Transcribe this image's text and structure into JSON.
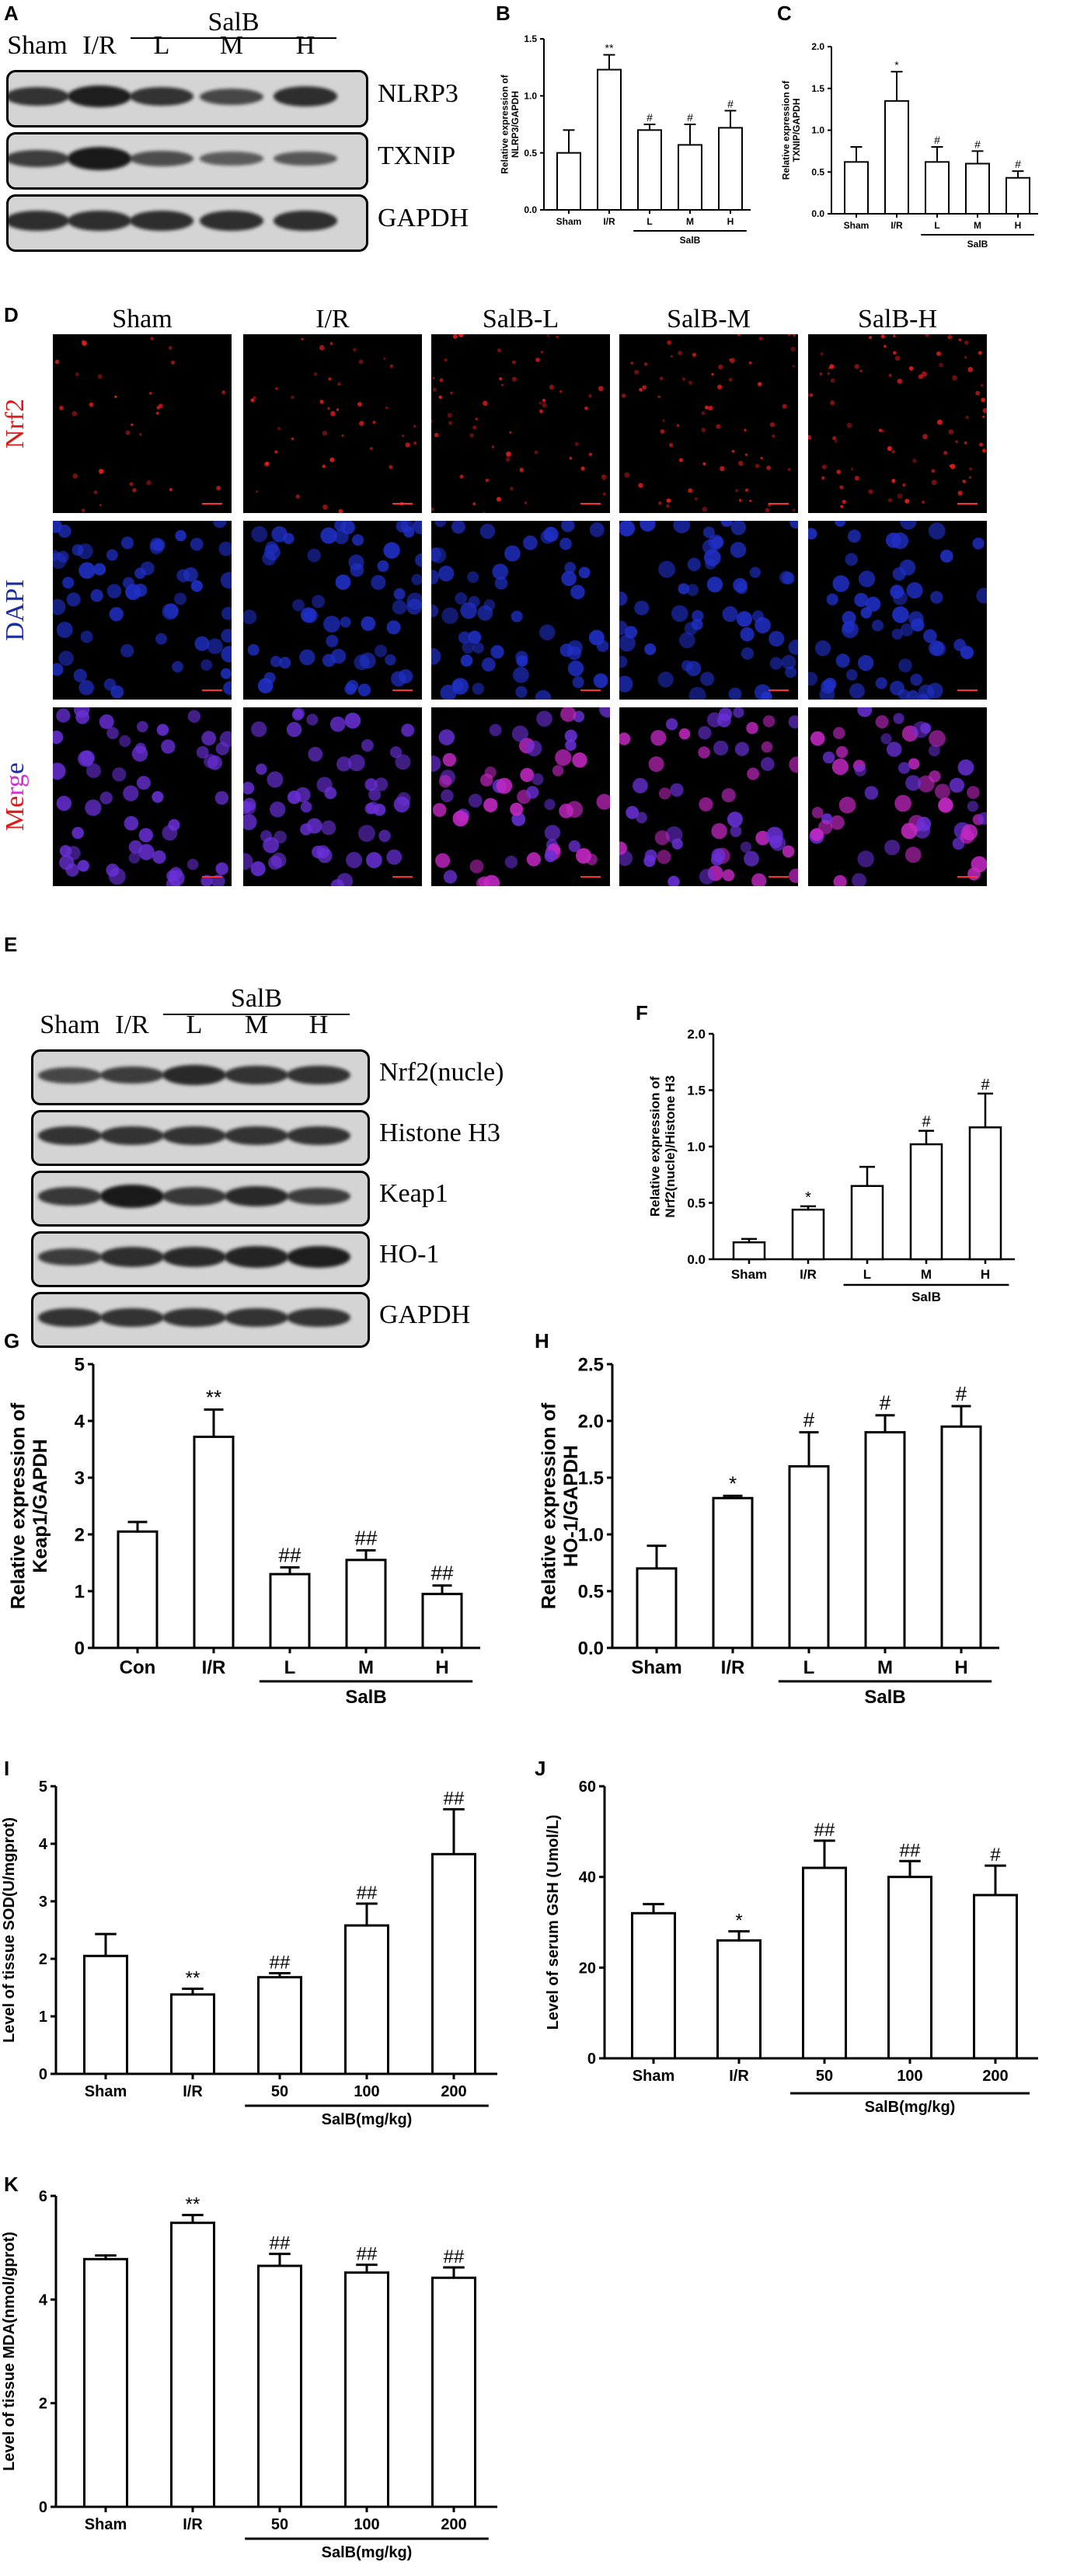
{
  "panel_labels": {
    "A": "A",
    "B": "B",
    "C": "C",
    "D": "D",
    "E": "E",
    "F": "F",
    "G": "G",
    "H": "H",
    "I": "I",
    "J": "J",
    "K": "K"
  },
  "blot_A": {
    "lanes": [
      "Sham",
      "I/R",
      "L",
      "M",
      "H"
    ],
    "group": "SalB",
    "rows": [
      "NLRP3",
      "TXNIP",
      "GAPDH"
    ],
    "intensity": [
      [
        0.7,
        0.9,
        0.7,
        0.5,
        0.75
      ],
      [
        0.6,
        0.95,
        0.45,
        0.3,
        0.35
      ],
      [
        0.75,
        0.75,
        0.75,
        0.75,
        0.75
      ]
    ]
  },
  "blot_E": {
    "lanes": [
      "Sham",
      "I/R",
      "L",
      "M",
      "H"
    ],
    "group": "SalB",
    "rows": [
      "Nrf2(nucle)",
      "Histone H3",
      "Keap1",
      "HO-1",
      "GAPDH"
    ],
    "intensity": [
      [
        0.5,
        0.6,
        0.8,
        0.7,
        0.7
      ],
      [
        0.7,
        0.7,
        0.7,
        0.7,
        0.7
      ],
      [
        0.65,
        0.95,
        0.65,
        0.8,
        0.6
      ],
      [
        0.6,
        0.75,
        0.8,
        0.85,
        0.9
      ],
      [
        0.7,
        0.7,
        0.7,
        0.7,
        0.7
      ]
    ]
  },
  "if_D": {
    "columns": [
      "Sham",
      "I/R",
      "SalB-L",
      "SalB-M",
      "SalB-H"
    ],
    "rows": [
      {
        "label": "Nrf2",
        "color": "#e01818",
        "kind": "nrf2"
      },
      {
        "label": "DAPI",
        "color": "#1a2ca0",
        "kind": "dapi"
      },
      {
        "label": "Merge",
        "kind": "merge",
        "colors": [
          "#ff1cff",
          "#ff1cff",
          "#1a2cc0",
          "#1a2cc0",
          "#1a2cc0"
        ]
      }
    ]
  },
  "chart_data": [
    {
      "id": "B",
      "type": "bar",
      "categories": [
        "Sham",
        "I/R",
        "L",
        "M",
        "H"
      ],
      "values": [
        0.5,
        1.23,
        0.7,
        0.57,
        0.72
      ],
      "errors": [
        0.2,
        0.13,
        0.05,
        0.18,
        0.15
      ],
      "marks": [
        "",
        "**",
        "#",
        "#",
        "#"
      ],
      "group": {
        "label": "SalB",
        "from": 2,
        "to": 4
      },
      "ylabel": "Relative expression of NLRP3/GAPDH",
      "ylim": [
        0,
        1.5
      ],
      "yticks": [
        0.0,
        0.5,
        1.0,
        1.5
      ],
      "tick_labels": [
        "0.0",
        "0.5",
        "1.0",
        "1.5"
      ]
    },
    {
      "id": "C",
      "type": "bar",
      "categories": [
        "Sham",
        "I/R",
        "L",
        "M",
        "H"
      ],
      "values": [
        0.62,
        1.35,
        0.62,
        0.6,
        0.43
      ],
      "errors": [
        0.18,
        0.35,
        0.18,
        0.15,
        0.08
      ],
      "marks": [
        "",
        "*",
        "#",
        "#",
        "#"
      ],
      "group": {
        "label": "SalB",
        "from": 2,
        "to": 4
      },
      "ylabel": "Relative expression of TXNIP/GAPDH",
      "ylim": [
        0,
        2.0
      ],
      "yticks": [
        0.0,
        0.5,
        1.0,
        1.5,
        2.0
      ],
      "tick_labels": [
        "0.0",
        "0.5",
        "1.0",
        "1.5",
        "2.0"
      ]
    },
    {
      "id": "F",
      "type": "bar",
      "categories": [
        "Sham",
        "I/R",
        "L",
        "M",
        "H"
      ],
      "values": [
        0.15,
        0.44,
        0.65,
        1.02,
        1.17
      ],
      "errors": [
        0.03,
        0.03,
        0.17,
        0.12,
        0.3
      ],
      "marks": [
        "",
        "*",
        "",
        "#",
        "#"
      ],
      "group": {
        "label": "SalB",
        "from": 2,
        "to": 4
      },
      "ylabel": "Relative expression of Nrf2(nucle)/Histone H3",
      "ylim": [
        0,
        2.0
      ],
      "yticks": [
        0.0,
        0.5,
        1.0,
        1.5,
        2.0
      ],
      "tick_labels": [
        "0.0",
        "0.5",
        "1.0",
        "1.5",
        "2.0"
      ]
    },
    {
      "id": "G",
      "type": "bar",
      "categories": [
        "Con",
        "I/R",
        "L",
        "M",
        "H"
      ],
      "values": [
        2.05,
        3.72,
        1.3,
        1.55,
        0.95
      ],
      "errors": [
        0.17,
        0.48,
        0.12,
        0.17,
        0.15
      ],
      "marks": [
        "",
        "**",
        "##",
        "##",
        "##"
      ],
      "group": {
        "label": "SalB",
        "from": 2,
        "to": 4
      },
      "ylabel": "Relative expression of Keap1/GAPDH",
      "ylim": [
        0,
        5
      ],
      "yticks": [
        0,
        1,
        2,
        3,
        4,
        5
      ],
      "tick_labels": [
        "0",
        "1",
        "2",
        "3",
        "4",
        "5"
      ]
    },
    {
      "id": "H",
      "type": "bar",
      "categories": [
        "Sham",
        "I/R",
        "L",
        "M",
        "H"
      ],
      "values": [
        0.7,
        1.32,
        1.6,
        1.9,
        1.95
      ],
      "errors": [
        0.2,
        0.02,
        0.3,
        0.15,
        0.18
      ],
      "marks": [
        "",
        "*",
        "#",
        "#",
        "#"
      ],
      "group": {
        "label": "SalB",
        "from": 2,
        "to": 4
      },
      "ylabel": "Relative expression of HO-1/GAPDH",
      "ylim": [
        0,
        2.5
      ],
      "yticks": [
        0.0,
        0.5,
        1.0,
        1.5,
        2.0,
        2.5
      ],
      "tick_labels": [
        "0.0",
        "0.5",
        "1.0",
        "1.5",
        "2.0",
        "2.5"
      ]
    },
    {
      "id": "I",
      "type": "bar",
      "categories": [
        "Sham",
        "I/R",
        "50",
        "100",
        "200"
      ],
      "values": [
        2.05,
        1.38,
        1.68,
        2.58,
        3.82
      ],
      "errors": [
        0.38,
        0.1,
        0.07,
        0.38,
        0.78
      ],
      "marks": [
        "",
        "**",
        "##",
        "##",
        "##"
      ],
      "group": {
        "label": "SalB(mg/kg)",
        "from": 2,
        "to": 4
      },
      "ylabel": "Level of tissue SOD(U/mgprot)",
      "ylim": [
        0,
        5
      ],
      "yticks": [
        0,
        1,
        2,
        3,
        4,
        5
      ],
      "tick_labels": [
        "0",
        "1",
        "2",
        "3",
        "4",
        "5"
      ]
    },
    {
      "id": "J",
      "type": "bar",
      "categories": [
        "Sham",
        "I/R",
        "50",
        "100",
        "200"
      ],
      "values": [
        32,
        26,
        42,
        40,
        36
      ],
      "errors": [
        2,
        2,
        6,
        3.5,
        6.5
      ],
      "marks": [
        "",
        "*",
        "##",
        "##",
        "#"
      ],
      "group": {
        "label": "SalB(mg/kg)",
        "from": 2,
        "to": 4
      },
      "ylabel": "Level of serum GSH (Umol/L)",
      "ylim": [
        0,
        60
      ],
      "yticks": [
        0,
        20,
        40,
        60
      ],
      "tick_labels": [
        "0",
        "20",
        "40",
        "60"
      ]
    },
    {
      "id": "K",
      "type": "bar",
      "categories": [
        "Sham",
        "I/R",
        "50",
        "100",
        "200"
      ],
      "values": [
        4.78,
        5.48,
        4.65,
        4.52,
        4.42
      ],
      "errors": [
        0.07,
        0.15,
        0.23,
        0.15,
        0.2
      ],
      "marks": [
        "",
        "**",
        "##",
        "##",
        "##"
      ],
      "group": {
        "label": "SalB(mg/kg)",
        "from": 2,
        "to": 4
      },
      "ylabel": "Level of tissue MDA(nmol/gprot)",
      "ylim": [
        0,
        6
      ],
      "yticks": [
        0,
        2,
        4,
        6
      ],
      "tick_labels": [
        "0",
        "2",
        "4",
        "6"
      ]
    }
  ]
}
